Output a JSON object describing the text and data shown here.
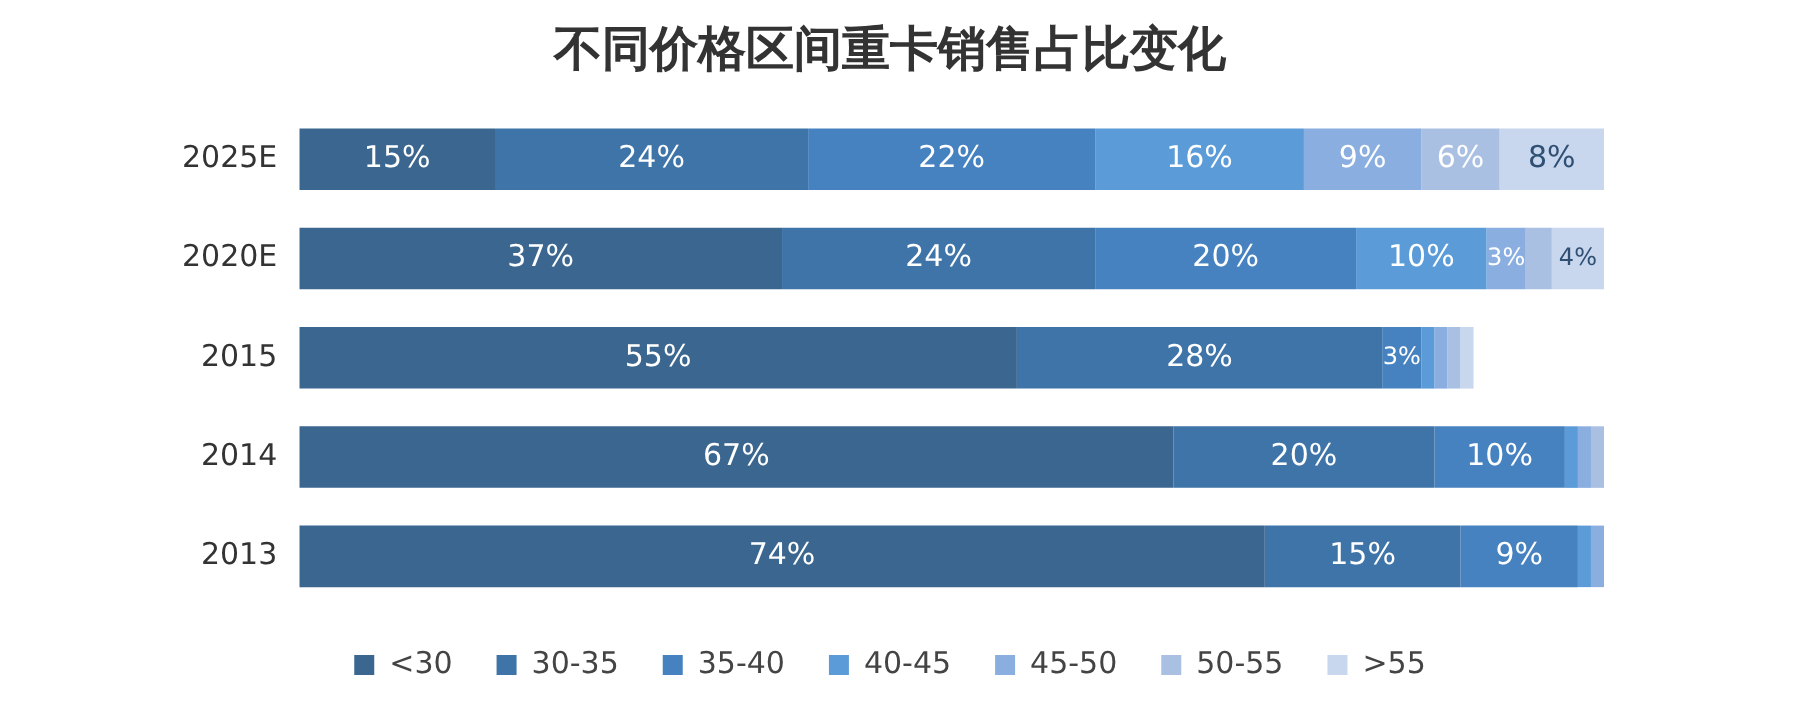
{
  "chart_data": {
    "type": "bar",
    "orientation": "horizontal",
    "stacked": true,
    "title": "不同价格区间重卡销售占比变化",
    "categories": [
      "2025E",
      "2020E",
      "2015",
      "2014",
      "2013"
    ],
    "series": [
      {
        "name": "<30",
        "color": "#3a6690",
        "values": [
          15,
          37,
          55,
          67,
          74
        ],
        "value_labels": [
          "15%",
          "37%",
          "55%",
          "67%",
          "74%"
        ]
      },
      {
        "name": "30-35",
        "color": "#3f74a8",
        "values": [
          24,
          24,
          28,
          20,
          15
        ],
        "value_labels": [
          "24%",
          "24%",
          "28%",
          "20%",
          "15%"
        ]
      },
      {
        "name": "35-40",
        "color": "#4682c0",
        "values": [
          22,
          20,
          3,
          10,
          9
        ],
        "value_labels": [
          "22%",
          "20%",
          "3%",
          "10%",
          "9%"
        ]
      },
      {
        "name": "40-45",
        "color": "#5a9bd8",
        "values": [
          16,
          10,
          1,
          1,
          1
        ],
        "value_labels": [
          "16%",
          "10%",
          null,
          null,
          null
        ]
      },
      {
        "name": "45-50",
        "color": "#8aaee0",
        "values": [
          9,
          3,
          1,
          1,
          1
        ],
        "value_labels": [
          "9%",
          "3%",
          null,
          null,
          null
        ]
      },
      {
        "name": "50-55",
        "color": "#a9c0e3",
        "values": [
          6,
          2,
          1,
          1,
          0
        ],
        "value_labels": [
          "6%",
          null,
          null,
          null,
          null
        ]
      },
      {
        "name": ">55",
        "color": "#c8d6ee",
        "values": [
          8,
          4,
          1,
          0,
          0
        ],
        "value_labels": [
          "8%",
          "4%",
          null,
          null,
          null
        ]
      }
    ],
    "legend": "bottom",
    "grid": false,
    "tick_labels": "y"
  }
}
